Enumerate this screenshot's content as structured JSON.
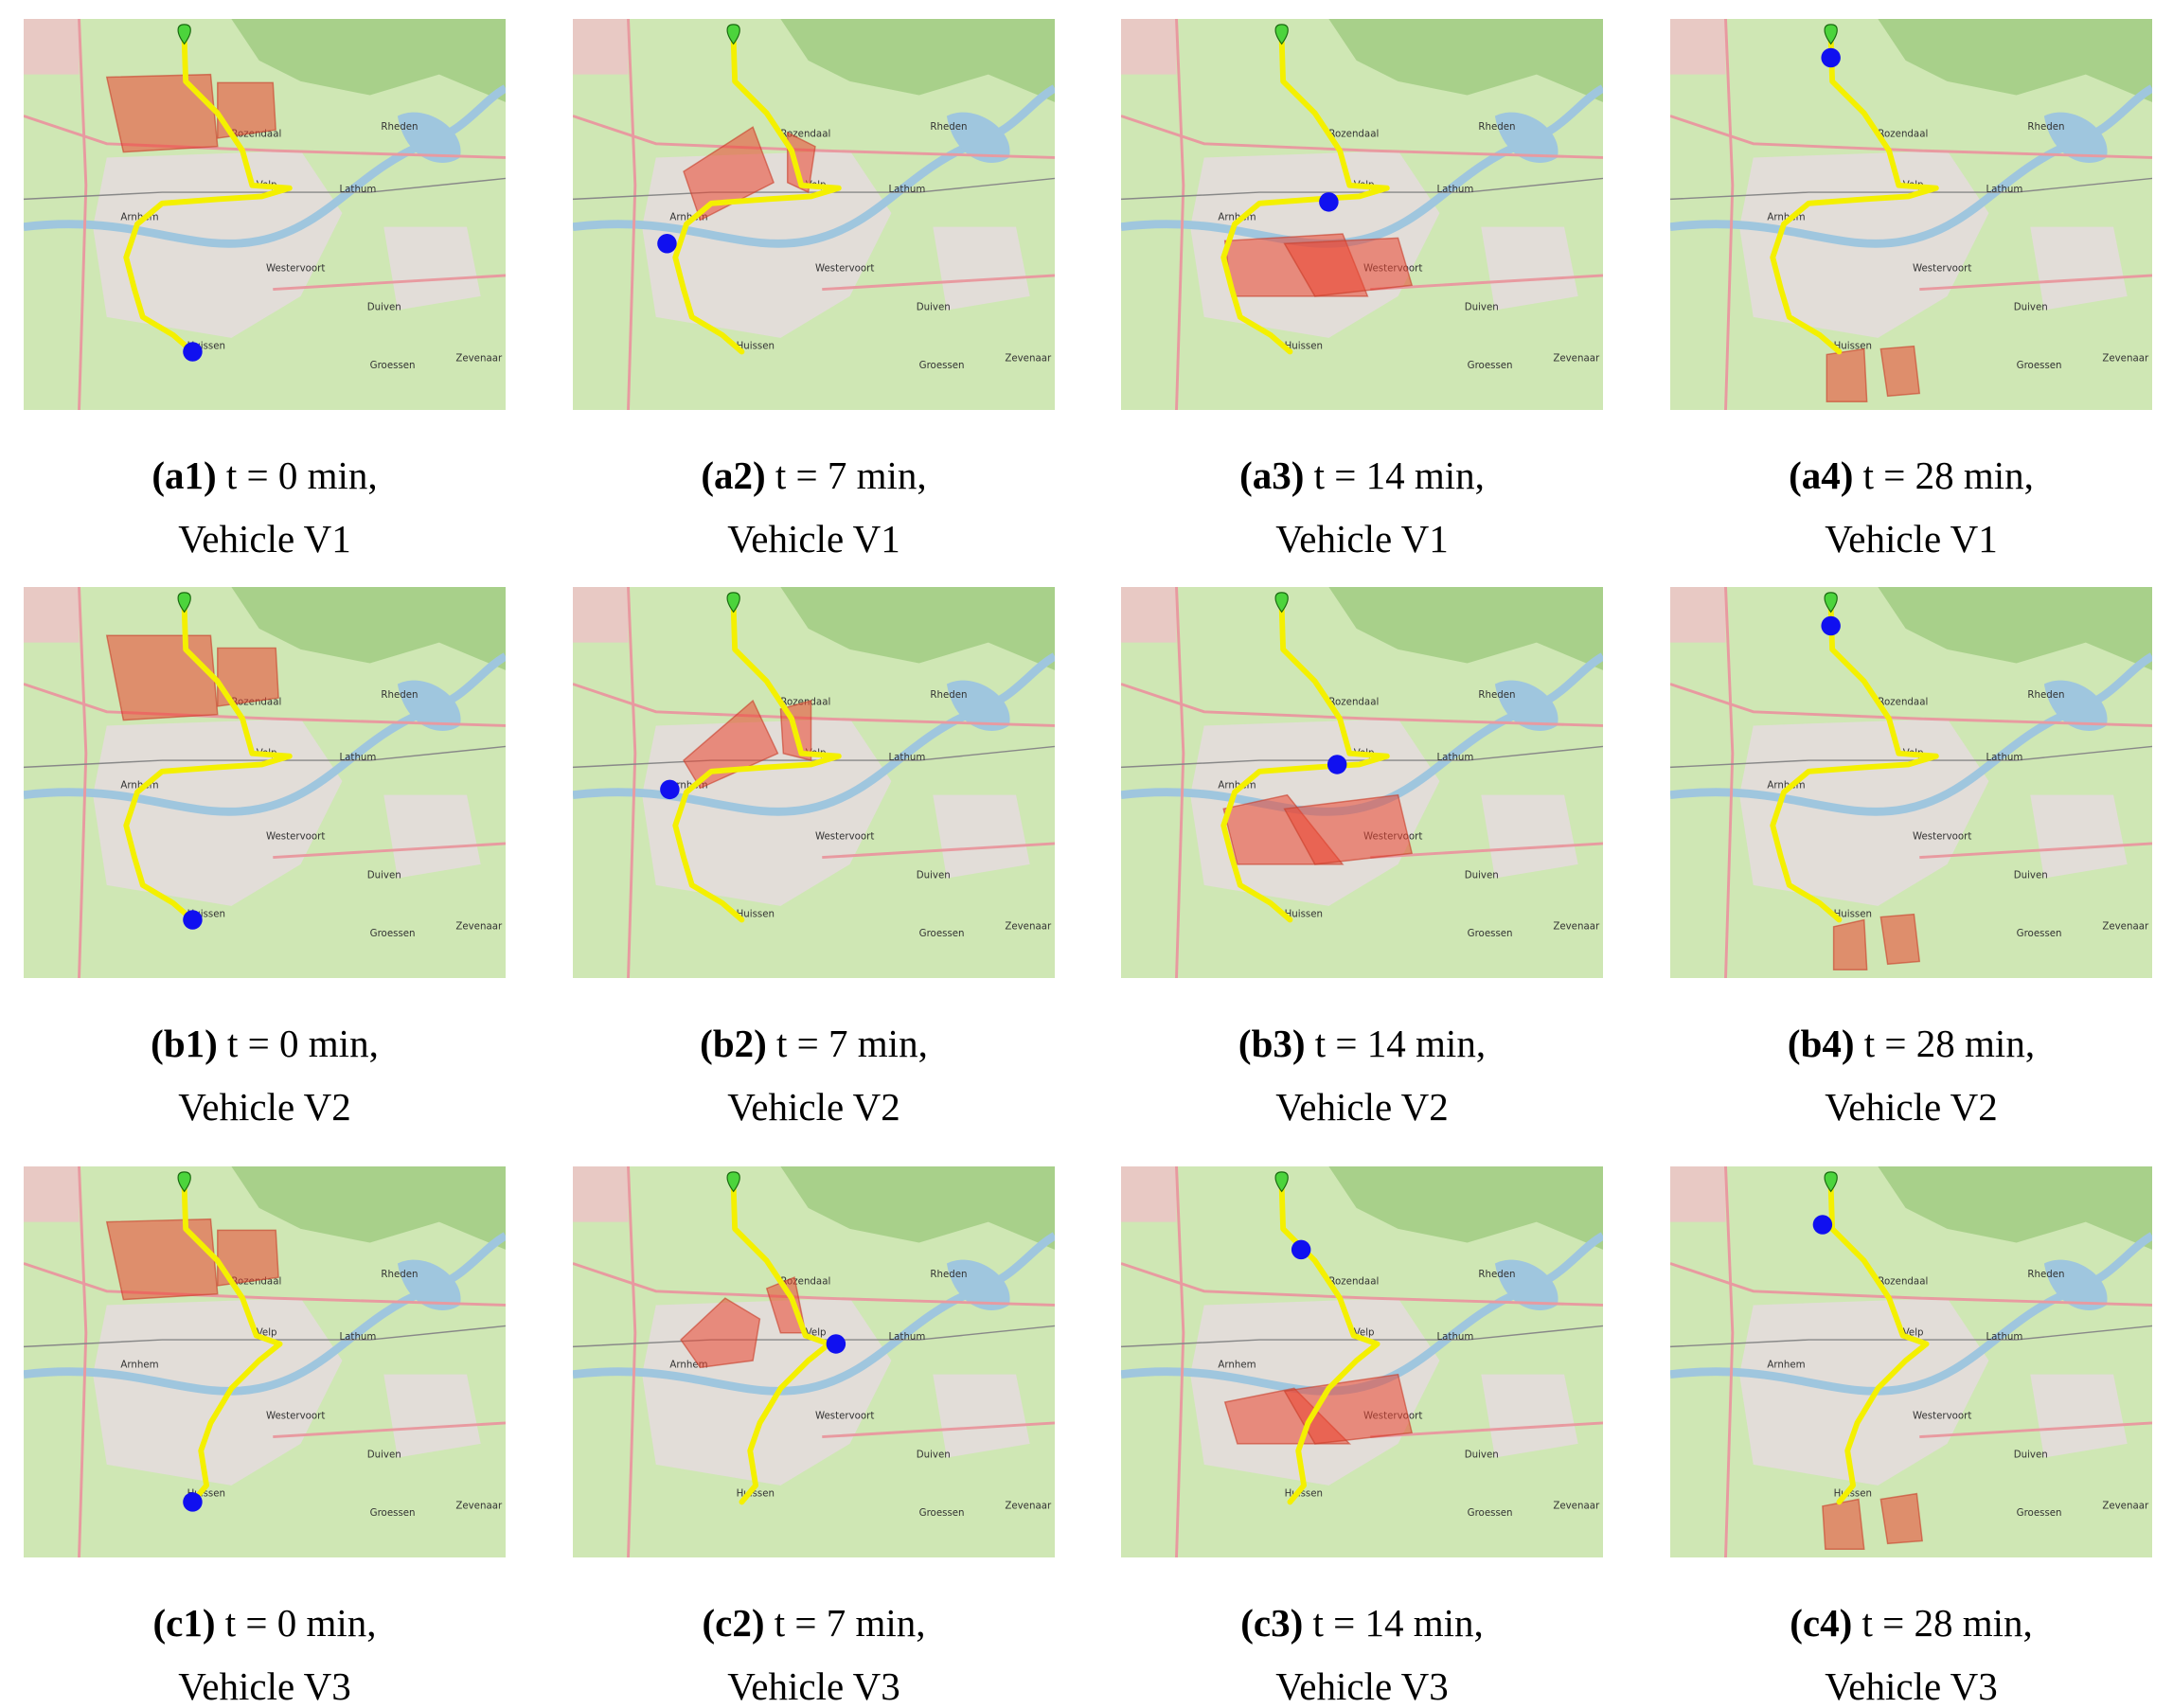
{
  "panels": [
    {
      "label": "(a1)",
      "time": "t = 0 min,",
      "vehicle": "Vehicle V1"
    },
    {
      "label": "(a2)",
      "time": "t = 7 min,",
      "vehicle": "Vehicle V1"
    },
    {
      "label": "(a3)",
      "time": "t = 14 min,",
      "vehicle": "Vehicle V1"
    },
    {
      "label": "(a4)",
      "time": "t = 28 min,",
      "vehicle": "Vehicle V1"
    },
    {
      "label": "(b1)",
      "time": "t = 0 min,",
      "vehicle": "Vehicle V2"
    },
    {
      "label": "(b2)",
      "time": "t = 7 min,",
      "vehicle": "Vehicle V2"
    },
    {
      "label": "(b3)",
      "time": "t = 14 min,",
      "vehicle": "Vehicle V2"
    },
    {
      "label": "(b4)",
      "time": "t = 28 min,",
      "vehicle": "Vehicle V2"
    },
    {
      "label": "(c1)",
      "time": "t = 0 min,",
      "vehicle": "Vehicle V3"
    },
    {
      "label": "(c2)",
      "time": "t = 7 min,",
      "vehicle": "Vehicle V3"
    },
    {
      "label": "(c3)",
      "time": "t = 14 min,",
      "vehicle": "Vehicle V3"
    },
    {
      "label": "(c4)",
      "time": "t = 28 min,",
      "vehicle": "Vehicle V3"
    }
  ],
  "map_labels": [
    "Arnhem",
    "Velp",
    "Rheden",
    "Rozendaal",
    "Westervoort",
    "Duiven",
    "Huissen",
    "Zevenaar",
    "Lathum",
    "Groessen"
  ]
}
